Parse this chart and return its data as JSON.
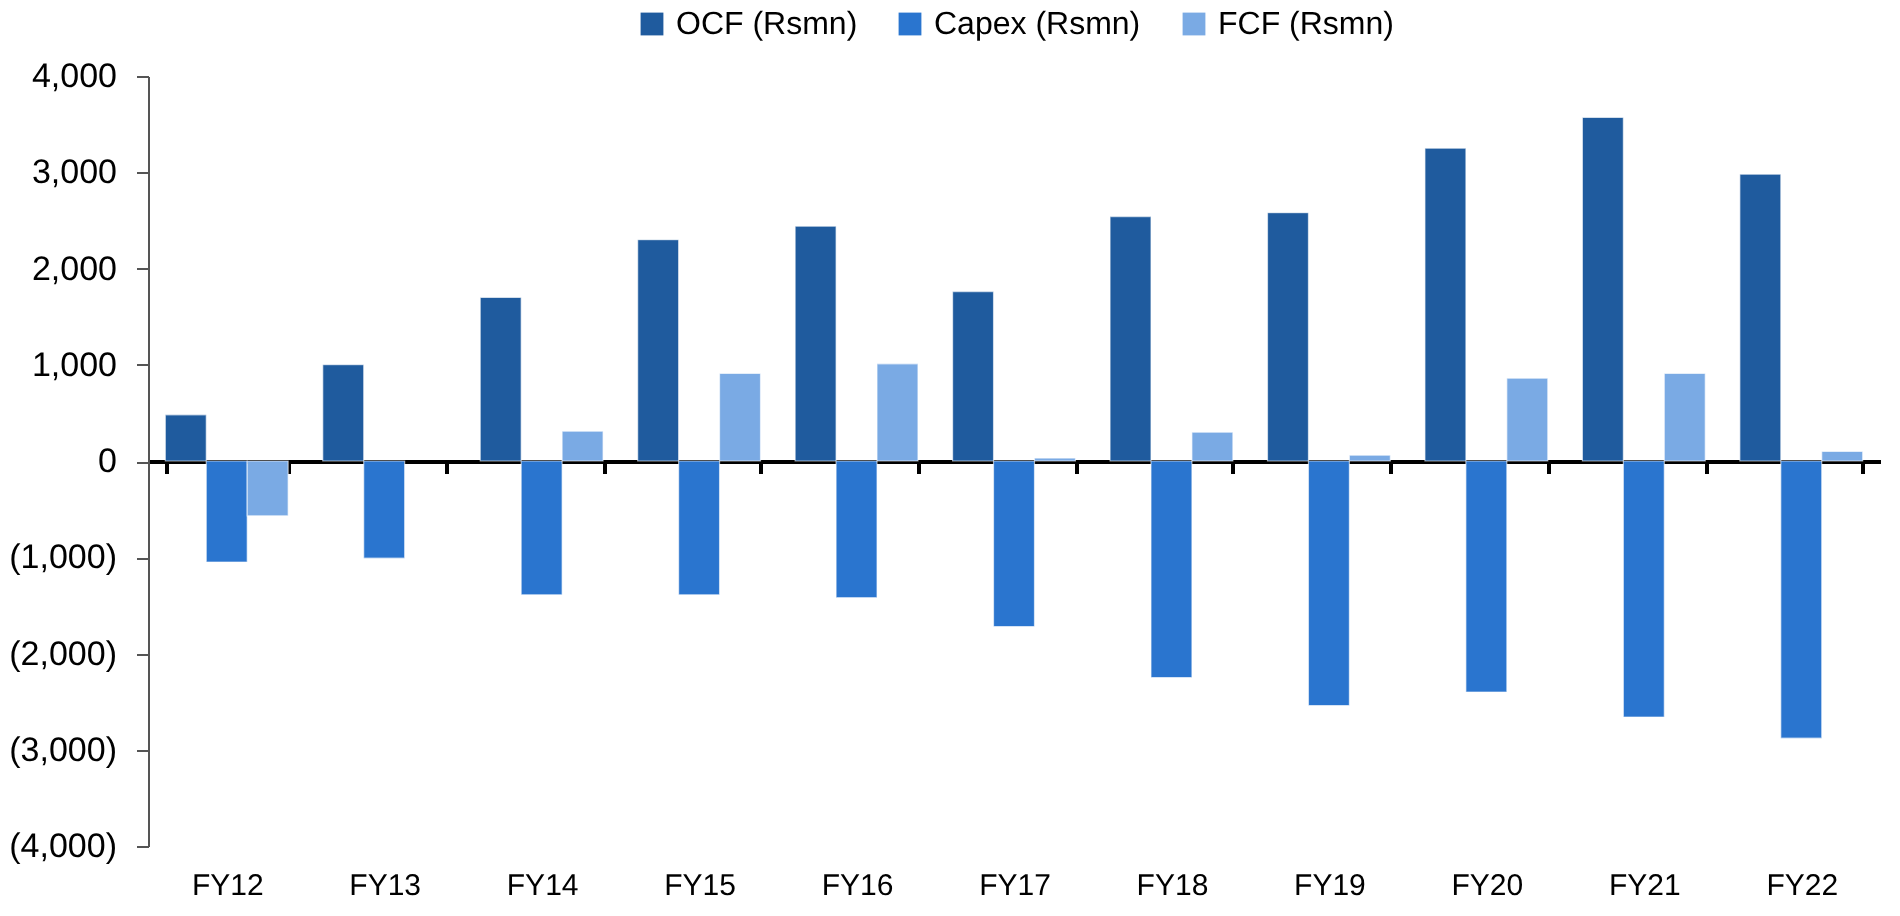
{
  "chart_data": {
    "type": "bar",
    "categories": [
      "FY12",
      "FY13",
      "FY14",
      "FY15",
      "FY16",
      "FY17",
      "FY18",
      "FY19",
      "FY20",
      "FY21",
      "FY22"
    ],
    "series": [
      {
        "name": "OCF (Rsmn)",
        "color": "#1f5b9e",
        "values": [
          480,
          1000,
          1700,
          2300,
          2440,
          1760,
          2540,
          2580,
          3250,
          3570,
          2980
        ]
      },
      {
        "name": "Capex (Rsmn)",
        "color": "#2a75cf",
        "values": [
          -1050,
          -1010,
          -1390,
          -1390,
          -1420,
          -1720,
          -2250,
          -2540,
          -2400,
          -2660,
          -2880
        ]
      },
      {
        "name": "FCF (Rsmn)",
        "color": "#7aaae4",
        "values": [
          -570,
          null,
          310,
          910,
          1010,
          30,
          300,
          60,
          860,
          910,
          100
        ]
      }
    ],
    "ylim": [
      -4000,
      4000
    ],
    "yticks": [
      {
        "value": -4000,
        "label": "(4,000)"
      },
      {
        "value": -3000,
        "label": "(3,000)"
      },
      {
        "value": -2000,
        "label": "(2,000)"
      },
      {
        "value": -1000,
        "label": "(1,000)"
      },
      0,
      {
        "value": 1000,
        "label": "1,000"
      },
      {
        "value": 2000,
        "label": "2,000"
      },
      {
        "value": 3000,
        "label": "3,000"
      },
      {
        "value": 4000,
        "label": "4,000"
      }
    ],
    "legend": "top"
  }
}
